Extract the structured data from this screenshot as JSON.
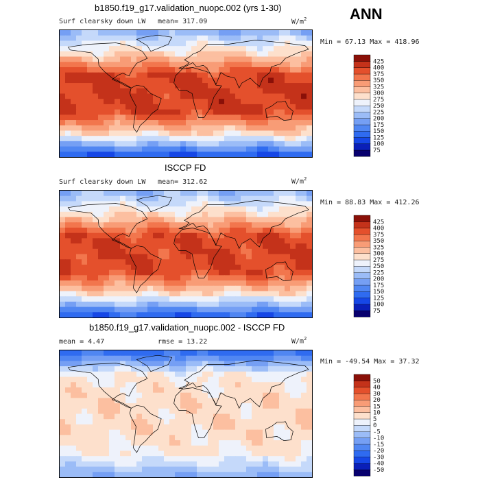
{
  "header": {
    "season": "ANN"
  },
  "panels": [
    {
      "title": "b1850.f19_g17.validation_nuopc.002 (yrs 1-30)",
      "variable": "Surf clearsky down LW",
      "mean": "mean=  317.09",
      "rmse": "",
      "units": "W/m",
      "units_exp": "2",
      "min_max": "Min =   67.13 Max =  418.96"
    },
    {
      "title": "ISCCP FD",
      "variable": "Surf clearsky down LW",
      "mean": "mean=  312.62",
      "rmse": "",
      "units": "W/m",
      "units_exp": "2",
      "min_max": "Min =   88.83 Max =  412.26"
    },
    {
      "title": "b1850.f19_g17.validation_nuopc.002 - ISCCP FD",
      "variable": "",
      "mean": "mean =    4.47",
      "rmse": "rmse =   13.22",
      "units": "W/m",
      "units_exp": "2",
      "min_max": "Min = -49.54 Max =   37.32"
    }
  ],
  "chart_data": [
    {
      "type": "heatmap",
      "title": "b1850.f19_g17.validation_nuopc.002 (yrs 1-30)",
      "subtitle": "Surf clearsky down LW",
      "units": "W/m2",
      "mean": 317.09,
      "min": 67.13,
      "max": 418.96,
      "colorbar_levels": [
        75,
        100,
        125,
        150,
        175,
        200,
        225,
        250,
        275,
        300,
        325,
        350,
        375,
        400,
        425
      ],
      "colorbar_colors": [
        "#08006e",
        "#0a1fb8",
        "#1647e6",
        "#2f6bf0",
        "#5086f2",
        "#759ff4",
        "#9bbcf7",
        "#c5d9fa",
        "#eef2fb",
        "#fde0cc",
        "#fcbfa0",
        "#f89c76",
        "#f2764d",
        "#e4502c",
        "#c4321a",
        "#8a1008"
      ],
      "field_model": {
        "tropics": 400,
        "midlat": 300,
        "pole_n": 200,
        "pole_s": 110
      }
    },
    {
      "type": "heatmap",
      "title": "ISCCP FD",
      "subtitle": "Surf clearsky down LW",
      "units": "W/m2",
      "mean": 312.62,
      "min": 88.83,
      "max": 412.26,
      "colorbar_levels": [
        75,
        100,
        125,
        150,
        175,
        200,
        225,
        250,
        275,
        300,
        325,
        350,
        375,
        400,
        425
      ],
      "colorbar_colors": [
        "#08006e",
        "#0a1fb8",
        "#1647e6",
        "#2f6bf0",
        "#5086f2",
        "#759ff4",
        "#9bbcf7",
        "#c5d9fa",
        "#eef2fb",
        "#fde0cc",
        "#fcbfa0",
        "#f89c76",
        "#f2764d",
        "#e4502c",
        "#c4321a",
        "#8a1008"
      ],
      "field_model": {
        "tropics": 395,
        "midlat": 295,
        "pole_n": 205,
        "pole_s": 120
      }
    },
    {
      "type": "heatmap",
      "title": "b1850.f19_g17.validation_nuopc.002 - ISCCP FD",
      "units": "W/m2",
      "mean": 4.47,
      "rmse": 13.22,
      "min": -49.54,
      "max": 37.32,
      "colorbar_levels": [
        -50,
        -40,
        -30,
        -20,
        -15,
        -10,
        -5,
        0,
        5,
        10,
        15,
        20,
        30,
        40,
        50
      ],
      "colorbar_colors": [
        "#08006e",
        "#0a1fb8",
        "#1647e6",
        "#2f6bf0",
        "#5086f2",
        "#759ff4",
        "#9bbcf7",
        "#c5d9fa",
        "#eef2fb",
        "#fde0cc",
        "#fcbfa0",
        "#f89c76",
        "#f2764d",
        "#e4502c",
        "#c4321a",
        "#8a1008"
      ],
      "field_model": {
        "tropics": 8,
        "midlat": 5,
        "pole_n": -25,
        "pole_s": -10
      }
    }
  ]
}
